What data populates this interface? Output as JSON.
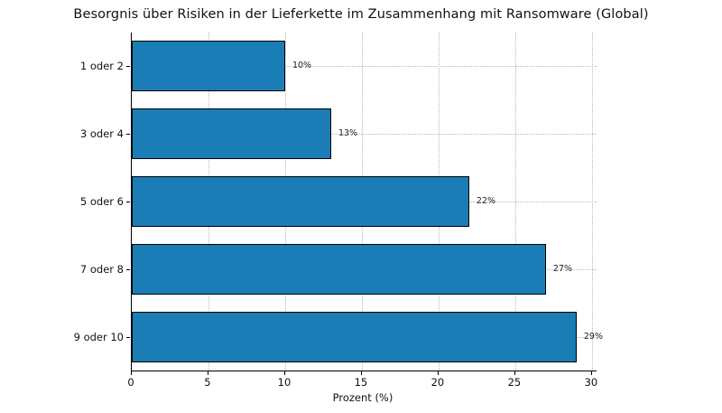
{
  "chart_data": {
    "type": "bar",
    "orientation": "horizontal",
    "title": "Besorgnis über Risiken in der Lieferkette im Zusammenhang mit Ransomware (Global)",
    "categories": [
      "1 oder 2",
      "3 oder 4",
      "5 oder 6",
      "7 oder 8",
      "9 oder 10"
    ],
    "values": [
      10,
      13,
      22,
      27,
      29
    ],
    "value_labels": [
      "10%",
      "13%",
      "22%",
      "27%",
      "29%"
    ],
    "xlabel": "Prozent (%)",
    "ylabel": "",
    "xlim": [
      0,
      30.3
    ],
    "xticks": [
      0,
      5,
      10,
      15,
      20,
      25,
      30
    ],
    "grid": true,
    "legend": "none",
    "bar_color": "#1a7db6",
    "bar_edge_color": "#000000",
    "grid_color": "#b9b9b9",
    "background": "#ffffff"
  }
}
